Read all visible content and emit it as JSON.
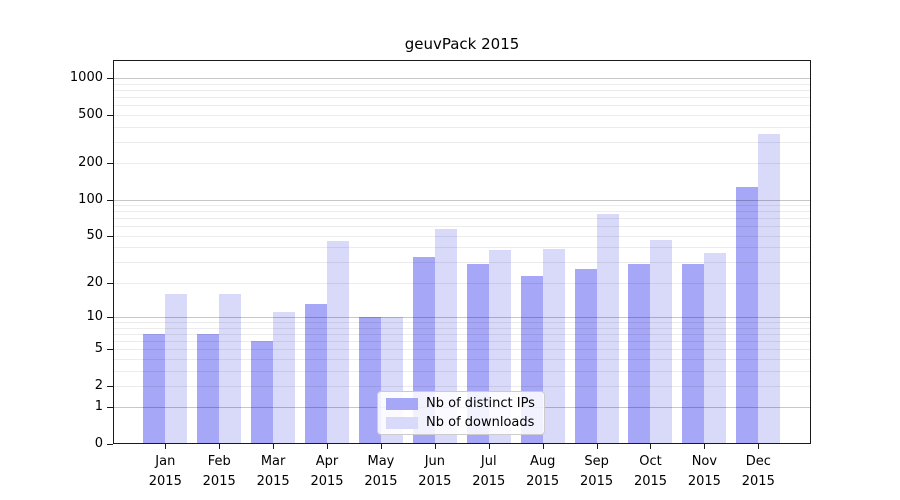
{
  "chart_data": {
    "type": "bar",
    "title": "geuvPack 2015",
    "categories": [
      "Jan",
      "Feb",
      "Mar",
      "Apr",
      "May",
      "Jun",
      "Jul",
      "Aug",
      "Sep",
      "Oct",
      "Nov",
      "Dec"
    ],
    "category_year": "2015",
    "series": [
      {
        "name": "Nb of distinct IPs",
        "color": "#a7a7f7",
        "values": [
          7,
          7,
          6,
          13,
          10,
          33,
          29,
          23,
          26,
          29,
          29,
          127
        ]
      },
      {
        "name": "Nb of downloads",
        "color": "#d9d9fa",
        "values": [
          16,
          16,
          11,
          45,
          10,
          57,
          38,
          39,
          76,
          46,
          36,
          347
        ]
      }
    ],
    "yscale": "log1p",
    "ylim": [
      0,
      1400
    ],
    "yticks": [
      0,
      1,
      2,
      5,
      10,
      20,
      50,
      100,
      200,
      500,
      1000
    ],
    "minor_gridlines": [
      2,
      3,
      4,
      5,
      6,
      7,
      8,
      9,
      20,
      30,
      40,
      50,
      60,
      70,
      80,
      90,
      200,
      300,
      400,
      500,
      600,
      700,
      800,
      900
    ],
    "major_gridlines": [
      1,
      10,
      100,
      1000
    ],
    "grid": true,
    "legend_position": "lower center"
  },
  "colors": {
    "axis": "#1a1a1a",
    "major_grid": "#c7c7c7",
    "minor_grid": "#eaeaea",
    "background": "#ffffff"
  }
}
